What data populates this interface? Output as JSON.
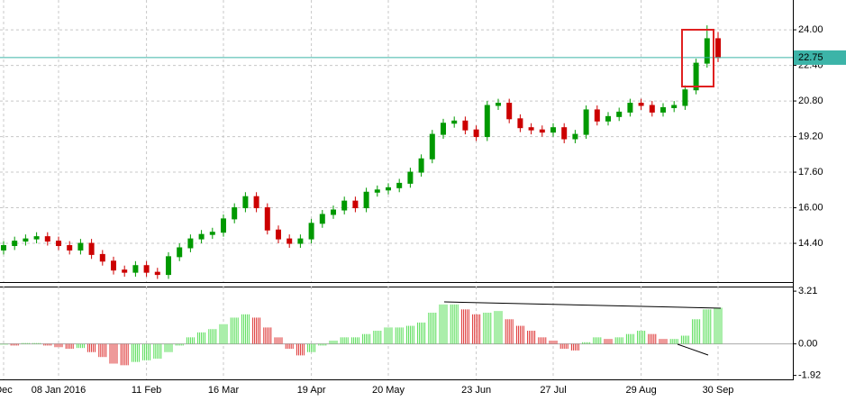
{
  "chart_data": [
    {
      "type": "candlestick",
      "open": [
        14.1,
        14.3,
        14.5,
        14.6,
        14.7,
        14.5,
        14.3,
        14.1,
        14.4,
        13.9,
        13.6,
        13.2,
        13.1,
        13.4,
        13.1,
        13.0,
        13.8,
        14.2,
        14.6,
        14.8,
        14.9,
        15.5,
        16.0,
        16.5,
        16.0,
        15.0,
        14.6,
        14.4,
        14.6,
        15.3,
        15.7,
        15.9,
        16.3,
        16.0,
        16.7,
        16.8,
        16.9,
        17.1,
        17.6,
        18.2,
        19.3,
        19.8,
        19.9,
        19.5,
        19.2,
        20.6,
        20.7,
        20.0,
        19.6,
        19.5,
        19.4,
        19.6,
        19.1,
        19.3,
        20.4,
        19.9,
        20.1,
        20.3,
        20.7,
        20.6,
        20.3,
        20.5,
        20.6,
        21.3,
        22.5,
        23.6
      ],
      "high": [
        14.5,
        14.7,
        14.8,
        14.9,
        14.9,
        14.7,
        14.5,
        14.6,
        14.6,
        14.1,
        13.8,
        13.4,
        13.6,
        13.6,
        13.3,
        14.0,
        14.4,
        14.8,
        15.0,
        15.1,
        15.7,
        16.2,
        16.7,
        16.7,
        16.2,
        15.2,
        14.8,
        14.8,
        15.5,
        15.9,
        16.1,
        16.5,
        16.5,
        16.9,
        17.0,
        17.1,
        17.3,
        17.8,
        18.4,
        19.5,
        20.0,
        20.1,
        20.1,
        19.7,
        20.8,
        20.9,
        20.9,
        20.2,
        19.8,
        19.7,
        19.8,
        19.8,
        19.5,
        20.6,
        20.6,
        20.3,
        20.5,
        20.9,
        20.9,
        20.8,
        20.7,
        20.8,
        21.5,
        22.7,
        24.2,
        23.9
      ],
      "low": [
        13.9,
        14.1,
        14.3,
        14.4,
        14.3,
        14.1,
        13.9,
        13.9,
        13.7,
        13.4,
        13.0,
        12.9,
        12.9,
        12.9,
        12.8,
        12.8,
        13.6,
        14.0,
        14.4,
        14.6,
        14.7,
        15.3,
        15.8,
        15.8,
        14.8,
        14.4,
        14.2,
        14.2,
        14.4,
        15.1,
        15.5,
        15.7,
        15.8,
        15.8,
        16.5,
        16.6,
        16.7,
        16.9,
        17.4,
        18.0,
        19.1,
        19.6,
        19.3,
        19.0,
        19.0,
        20.4,
        19.8,
        19.4,
        19.3,
        19.2,
        19.2,
        18.9,
        18.9,
        19.1,
        19.7,
        19.7,
        19.9,
        20.1,
        20.4,
        20.1,
        20.1,
        20.3,
        20.4,
        21.1,
        22.3,
        22.55
      ],
      "close": [
        14.3,
        14.5,
        14.6,
        14.7,
        14.5,
        14.3,
        14.1,
        14.4,
        13.9,
        13.6,
        13.2,
        13.1,
        13.4,
        13.1,
        13.0,
        13.8,
        14.2,
        14.6,
        14.8,
        14.9,
        15.5,
        16.0,
        16.5,
        16.0,
        15.0,
        14.6,
        14.4,
        14.6,
        15.3,
        15.7,
        15.9,
        16.3,
        16.0,
        16.7,
        16.8,
        16.9,
        17.1,
        17.6,
        18.2,
        19.3,
        19.8,
        19.9,
        19.5,
        19.2,
        20.6,
        20.7,
        20.0,
        19.6,
        19.5,
        19.4,
        19.6,
        19.1,
        19.3,
        20.4,
        19.9,
        20.1,
        20.3,
        20.7,
        20.6,
        20.3,
        20.5,
        20.6,
        21.3,
        22.5,
        23.6,
        22.75
      ],
      "up_color": "#009900",
      "down_color": "#cc0000",
      "last_price": 22.75,
      "last_price_color": "#3cb4a8",
      "ylim": [
        12.66,
        25.34
      ],
      "yticks": [
        {
          "value": 24,
          "label": "24.00"
        },
        {
          "value": 22.4,
          "label": "22.40"
        },
        {
          "value": 20.8,
          "label": "20.80"
        },
        {
          "value": 19.2,
          "label": "19.20"
        },
        {
          "value": 17.6,
          "label": "17.60"
        },
        {
          "value": 16,
          "label": "16.00"
        },
        {
          "value": 14.4,
          "label": "14.40"
        }
      ],
      "grid": true
    },
    {
      "type": "bar",
      "categories": [
        "Dec",
        null,
        null,
        null,
        null,
        "08 Jan 2016",
        null,
        null,
        null,
        null,
        null,
        null,
        null,
        "11 Feb",
        null,
        null,
        null,
        null,
        null,
        null,
        "16 Mar",
        null,
        null,
        null,
        null,
        null,
        null,
        null,
        "19 Apr",
        null,
        null,
        null,
        null,
        null,
        null,
        "20 May",
        null,
        null,
        null,
        null,
        null,
        null,
        null,
        "23 Jun",
        null,
        null,
        null,
        null,
        null,
        null,
        "27 Jul",
        null,
        null,
        null,
        null,
        null,
        null,
        null,
        "29 Aug",
        null,
        null,
        null,
        null,
        null,
        null,
        "30 Sep"
      ],
      "values": [
        -0.05,
        -0.1,
        0.05,
        0.05,
        -0.1,
        -0.2,
        -0.3,
        -0.25,
        -0.5,
        -0.8,
        -1.2,
        -1.3,
        -1.1,
        -1.0,
        -0.9,
        -0.5,
        -0.1,
        0.4,
        0.7,
        0.9,
        1.2,
        1.6,
        1.8,
        1.6,
        1.0,
        0.4,
        -0.3,
        -0.7,
        -0.5,
        -0.1,
        0.2,
        0.4,
        0.4,
        0.6,
        0.8,
        1.0,
        1.0,
        1.1,
        1.3,
        1.9,
        2.4,
        2.4,
        2.1,
        1.8,
        1.9,
        2.0,
        1.5,
        1.1,
        0.8,
        0.4,
        0.2,
        -0.3,
        -0.4,
        0.1,
        0.4,
        0.3,
        0.4,
        0.6,
        0.8,
        0.6,
        0.3,
        0.3,
        0.5,
        1.5,
        2.1,
        2.2
      ],
      "up_color": "#55dd55",
      "down_color": "#dd3333",
      "ylim": [
        -2.16,
        3.49
      ],
      "yticks": [
        3.21,
        {
          "value": 0,
          "label": "0.00"
        },
        -1.92
      ]
    }
  ]
}
